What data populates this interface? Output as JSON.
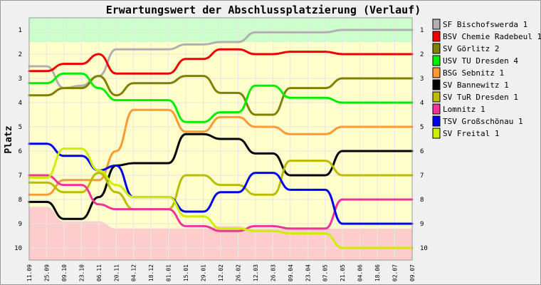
{
  "chart_data": {
    "type": "line",
    "title": "Erwartungswert der Abschlussplatzierung (Verlauf)",
    "ylabel": "Platz",
    "xlabel": "",
    "y_inverted": true,
    "ylim": [
      0.5,
      10.5
    ],
    "y_ticks": [
      1,
      2,
      3,
      4,
      5,
      6,
      7,
      8,
      9,
      10
    ],
    "x": [
      "11.09",
      "25.09",
      "09.10",
      "23.10",
      "06.11",
      "20.11",
      "04.12",
      "18.12",
      "01.01",
      "15.01",
      "29.01",
      "12.02",
      "26.02",
      "12.03",
      "26.03",
      "09.04",
      "23.04",
      "07.05",
      "21.05",
      "04.06",
      "18.06",
      "02.07",
      "09.07"
    ],
    "grid": true,
    "legend_position": "right",
    "zones": [
      {
        "from": 0.5,
        "to": 1.5,
        "color": "#ccffcc"
      },
      {
        "from": 1.5,
        "to": 9.2,
        "color": "#ffffcc"
      },
      {
        "from": 9.2,
        "to": 10.5,
        "color": "#ffcccc"
      }
    ],
    "zone_boundary": [
      8.3,
      8.3,
      8.9,
      8.9,
      8.9,
      9.2,
      9.2,
      9.2,
      9.2,
      9.2,
      9.2,
      9.1,
      9.1,
      9.3,
      9.3,
      9.4,
      9.4,
      9.4,
      9.5,
      9.5,
      9.5,
      9.5,
      9.5
    ],
    "series": [
      {
        "name": "SF Bischofswerda 1",
        "color": "#b0b0b0",
        "values": [
          2.5,
          2.5,
          3.4,
          3.3,
          2.9,
          1.8,
          1.8,
          1.8,
          1.8,
          1.6,
          1.6,
          1.5,
          1.5,
          1.1,
          1.1,
          1.1,
          1.1,
          1.1,
          1.0,
          1.0,
          1.0,
          1.0,
          1.0
        ]
      },
      {
        "name": "BSV Chemie Radebeul 1",
        "color": "#ee0000",
        "values": [
          2.7,
          2.7,
          2.4,
          2.4,
          2.0,
          2.8,
          2.8,
          2.8,
          2.8,
          2.2,
          2.2,
          1.8,
          1.8,
          2.0,
          2.0,
          1.9,
          1.9,
          1.9,
          2.0,
          2.0,
          2.0,
          2.0,
          2.0
        ]
      },
      {
        "name": "SV Görlitz 2",
        "color": "#808000",
        "values": [
          3.7,
          3.7,
          3.4,
          3.4,
          2.9,
          3.7,
          3.2,
          3.2,
          3.2,
          2.9,
          2.9,
          3.6,
          3.6,
          4.5,
          4.5,
          3.4,
          3.4,
          3.4,
          3.0,
          3.0,
          3.0,
          3.0,
          3.0
        ]
      },
      {
        "name": "USV TU Dresden 4",
        "color": "#00ee00",
        "values": [
          3.2,
          3.2,
          2.8,
          2.8,
          3.4,
          3.9,
          3.9,
          3.9,
          3.9,
          4.8,
          4.8,
          4.4,
          4.4,
          3.3,
          3.3,
          3.8,
          3.8,
          3.8,
          4.0,
          4.0,
          4.0,
          4.0,
          4.0
        ]
      },
      {
        "name": "BSG Sebnitz 1",
        "color": "#ff9933",
        "values": [
          7.8,
          7.8,
          7.2,
          7.2,
          7.2,
          6.0,
          4.3,
          4.3,
          4.3,
          5.2,
          5.2,
          4.6,
          4.6,
          5.0,
          5.0,
          5.3,
          5.3,
          5.3,
          5.0,
          5.0,
          5.0,
          5.0,
          5.0
        ]
      },
      {
        "name": "SV Bannewitz 1",
        "color": "#000000",
        "values": [
          8.1,
          8.1,
          8.8,
          8.8,
          7.9,
          6.6,
          6.5,
          6.5,
          6.5,
          5.3,
          5.3,
          5.5,
          5.5,
          6.1,
          6.1,
          7.0,
          7.0,
          7.0,
          6.0,
          6.0,
          6.0,
          6.0,
          6.0
        ]
      },
      {
        "name": "SV TuR Dresden 1",
        "color": "#bbbb00",
        "values": [
          7.3,
          7.3,
          7.7,
          7.7,
          6.9,
          7.7,
          8.4,
          8.4,
          8.4,
          7.0,
          7.0,
          7.4,
          7.4,
          7.8,
          7.8,
          6.4,
          6.4,
          6.4,
          7.0,
          7.0,
          7.0,
          7.0,
          7.0
        ]
      },
      {
        "name": "Lomnitz 1",
        "color": "#ee3399",
        "values": [
          7.0,
          7.0,
          7.4,
          7.4,
          8.2,
          8.4,
          8.4,
          8.4,
          8.4,
          9.1,
          9.1,
          9.3,
          9.3,
          9.1,
          9.1,
          9.2,
          9.2,
          9.2,
          8.0,
          8.0,
          8.0,
          8.0,
          8.0
        ]
      },
      {
        "name": "TSV Großschönau 1",
        "color": "#0000ee",
        "values": [
          5.7,
          5.7,
          6.2,
          6.2,
          6.8,
          6.6,
          7.9,
          7.9,
          7.9,
          8.5,
          8.5,
          7.7,
          7.7,
          6.9,
          6.9,
          7.6,
          7.6,
          7.6,
          9.0,
          9.0,
          9.0,
          9.0,
          9.0
        ]
      },
      {
        "name": "SV Freital 1",
        "color": "#ccee00",
        "values": [
          7.1,
          7.1,
          5.9,
          5.9,
          6.8,
          7.4,
          7.9,
          7.9,
          7.9,
          8.7,
          8.7,
          9.2,
          9.2,
          9.3,
          9.3,
          9.4,
          9.4,
          9.4,
          10.0,
          10.0,
          10.0,
          10.0,
          10.0
        ]
      }
    ]
  }
}
